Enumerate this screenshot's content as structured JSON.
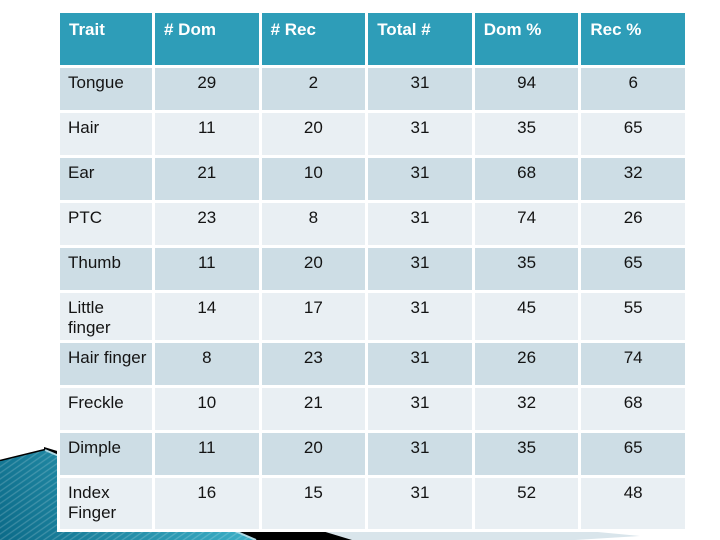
{
  "table": {
    "columns": [
      "Trait",
      "# Dom",
      "# Rec",
      "Total #",
      "Dom %",
      "Rec %"
    ],
    "rows": [
      [
        "Tongue",
        29,
        2,
        31,
        94,
        6
      ],
      [
        "Hair",
        11,
        20,
        31,
        35,
        65
      ],
      [
        "Ear",
        21,
        10,
        31,
        68,
        32
      ],
      [
        "PTC",
        23,
        8,
        31,
        74,
        26
      ],
      [
        "Thumb",
        11,
        20,
        31,
        35,
        65
      ],
      [
        "Little finger",
        14,
        17,
        31,
        45,
        55
      ],
      [
        "Hair finger",
        8,
        23,
        31,
        26,
        74
      ],
      [
        "Freckle",
        10,
        21,
        31,
        32,
        68
      ],
      [
        "Dimple",
        11,
        20,
        31,
        35,
        65
      ],
      [
        "Index Finger",
        16,
        15,
        31,
        52,
        48
      ]
    ]
  },
  "colors": {
    "header_bg": "#2e9db8",
    "header_text": "#ffffff",
    "row_odd_bg": "#cddde5",
    "row_even_bg": "#e9eff3",
    "cell_text": "#141414",
    "grid_line": "#ffffff",
    "deco_teal_dark": "#0b6a88",
    "deco_teal_light": "#3fb3ca",
    "deco_edge_highlight": "#aed9e4",
    "deco_black": "#000000",
    "deco_light_wedge": "#d9e5eb"
  }
}
